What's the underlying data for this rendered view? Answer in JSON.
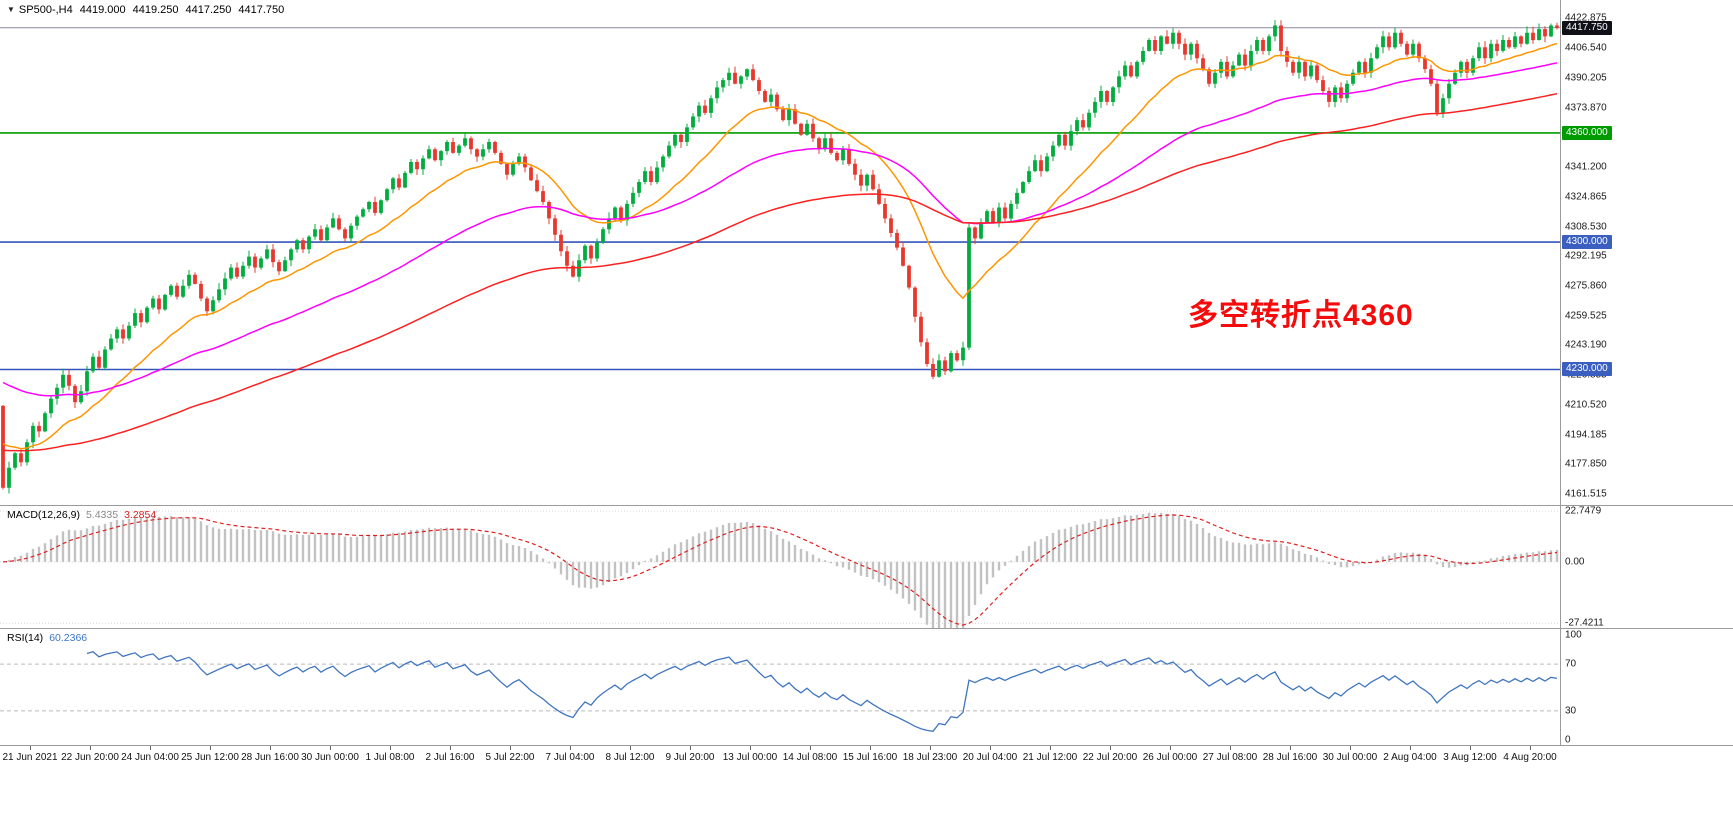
{
  "header": {
    "symbol_label": "SP500-,H4",
    "open": "4419.000",
    "high": "4419.250",
    "low": "4417.250",
    "close": "4417.750"
  },
  "annotation": {
    "text": "多空转折点4360",
    "color": "#f40b0b"
  },
  "price_axis": {
    "labels": [
      "4422.875",
      "4406.540",
      "4390.205",
      "4373.870",
      "4357.535",
      "4341.200",
      "4324.865",
      "4308.530",
      "4292.195",
      "4275.860",
      "4259.525",
      "4243.190",
      "4226.855",
      "4210.520",
      "4194.185",
      "4177.850",
      "4161.515"
    ]
  },
  "levels": [
    {
      "price": 4417.75,
      "color": "#8888a0",
      "style": "solid",
      "width": 1,
      "badge": "4417.750",
      "badge_bg": "#101018"
    },
    {
      "price": 4360,
      "color": "#009b00",
      "style": "solid",
      "width": 1.6,
      "badge": "4360.000",
      "badge_bg": "#009b00"
    },
    {
      "price": 4300,
      "color": "#3355bb",
      "style": "solid",
      "width": 1.6,
      "badge": "4300.000",
      "badge_bg": "#3a5fc0"
    },
    {
      "price": 4230,
      "color": "#3355bb",
      "style": "solid",
      "width": 1.6,
      "badge": "4230.000",
      "badge_bg": "#3a5fc0"
    }
  ],
  "time_axis": {
    "labels": [
      "21 Jun 2021",
      "22 Jun 20:00",
      "24 Jun 04:00",
      "25 Jun 12:00",
      "28 Jun 16:00",
      "30 Jun 00:00",
      "1 Jul 08:00",
      "2 Jul 16:00",
      "5 Jul 22:00",
      "7 Jul 04:00",
      "8 Jul 12:00",
      "9 Jul 20:00",
      "13 Jul 00:00",
      "14 Jul 08:00",
      "15 Jul 16:00",
      "18 Jul 23:00",
      "20 Jul 04:00",
      "21 Jul 12:00",
      "22 Jul 20:00",
      "26 Jul 00:00",
      "27 Jul 08:00",
      "28 Jul 16:00",
      "30 Jul 00:00",
      "2 Aug 04:00",
      "3 Aug 12:00",
      "4 Aug 20:00"
    ]
  },
  "indicators": {
    "macd": {
      "label": "MACD(12,26,9)",
      "value_main": "5.4335",
      "value_signal": "3.2854",
      "axis_labels": [
        "22.7479",
        "0.00",
        "-27.4211"
      ],
      "range": [
        -30,
        25
      ],
      "hist_color": "#c2c2c2",
      "signal_color": "#e02020",
      "fast": 12,
      "slow": 26,
      "signal": 9
    },
    "rsi": {
      "label": "RSI(14)",
      "value": "60.2366",
      "axis_labels": [
        "100",
        "70",
        "30",
        "0"
      ],
      "guide_levels": [
        70,
        30
      ],
      "range": [
        0,
        100
      ],
      "color": "#4076c0",
      "period": 14
    }
  },
  "chart_data": {
    "type": "candlestick",
    "symbol": "SP500-",
    "timeframe": "H4",
    "current_bar": {
      "open": 4419.0,
      "high": 4419.25,
      "low": 4417.25,
      "close": 4417.75
    },
    "y_range": [
      4155,
      4433
    ],
    "first_open": 4210,
    "bars_per_time_tick": 10,
    "up_color": "#00ad3c",
    "down_color": "#e8382e",
    "closes": [
      4165,
      4176,
      4184,
      4179,
      4190,
      4199,
      4196,
      4206,
      4214,
      4220,
      4227,
      4221,
      4212,
      4218,
      4229,
      4237,
      4231,
      4241,
      4247,
      4252,
      4247,
      4254,
      4261,
      4256,
      4264,
      4269,
      4263,
      4271,
      4276,
      4270,
      4276,
      4282,
      4277,
      4269,
      4262,
      4268,
      4274,
      4280,
      4286,
      4281,
      4287,
      4292,
      4286,
      4291,
      4296,
      4289,
      4284,
      4290,
      4296,
      4301,
      4296,
      4303,
      4307,
      4301,
      4308,
      4313,
      4307,
      4302,
      4309,
      4314,
      4318,
      4322,
      4316,
      4323,
      4329,
      4335,
      4330,
      4338,
      4344,
      4340,
      4346,
      4351,
      4345,
      4350,
      4355,
      4349,
      4353,
      4357,
      4351,
      4347,
      4351,
      4355,
      4349,
      4343,
      4337,
      4343,
      4347,
      4341,
      4334,
      4328,
      4322,
      4313,
      4304,
      4295,
      4287,
      4281,
      4290,
      4298,
      4291,
      4300,
      4307,
      4313,
      4319,
      4312,
      4321,
      4327,
      4333,
      4339,
      4333,
      4341,
      4347,
      4353,
      4359,
      4355,
      4363,
      4369,
      4375,
      4371,
      4379,
      4385,
      4389,
      4393,
      4387,
      4391,
      4395,
      4389,
      4383,
      4377,
      4381,
      4373,
      4367,
      4373,
      4365,
      4359,
      4365,
      4357,
      4351,
      4357,
      4349,
      4345,
      4351,
      4343,
      4337,
      4331,
      4337,
      4329,
      4321,
      4313,
      4305,
      4297,
      4287,
      4275,
      4259,
      4245,
      4233,
      4226,
      4235,
      4229,
      4239,
      4235,
      4242,
      4308,
      4302,
      4311,
      4317,
      4311,
      4319,
      4313,
      4321,
      4327,
      4333,
      4339,
      4345,
      4339,
      4347,
      4353,
      4359,
      4353,
      4361,
      4367,
      4363,
      4371,
      4377,
      4383,
      4377,
      4385,
      4391,
      4397,
      4391,
      4399,
      4405,
      4411,
      4405,
      4413,
      4409,
      4415,
      4409,
      4403,
      4409,
      4401,
      4395,
      4387,
      4393,
      4399,
      4391,
      4397,
      4403,
      4397,
      4405,
      4411,
      4405,
      4413,
      4419,
      4405,
      4399,
      4393,
      4399,
      4391,
      4397,
      4389,
      4383,
      4377,
      4385,
      4379,
      4387,
      4393,
      4399,
      4393,
      4401,
      4407,
      4413,
      4407,
      4415,
      4409,
      4403,
      4409,
      4401,
      4395,
      4387,
      4371,
      4379,
      4387,
      4393,
      4399,
      4393,
      4401,
      4407,
      4401,
      4409,
      4405,
      4411,
      4407,
      4413,
      4409,
      4415,
      4411,
      4417,
      4413,
      4419,
      4417.75
    ],
    "moving_averages": [
      {
        "name": "ma-fast",
        "period": 18,
        "color": "#ff9500",
        "seed": 4192
      },
      {
        "name": "ma-medium",
        "period": 55,
        "color": "#ff00ff",
        "seed": 4225
      },
      {
        "name": "ma-slow",
        "period": 110,
        "color": "#ff2020",
        "seed": 4186
      }
    ]
  }
}
